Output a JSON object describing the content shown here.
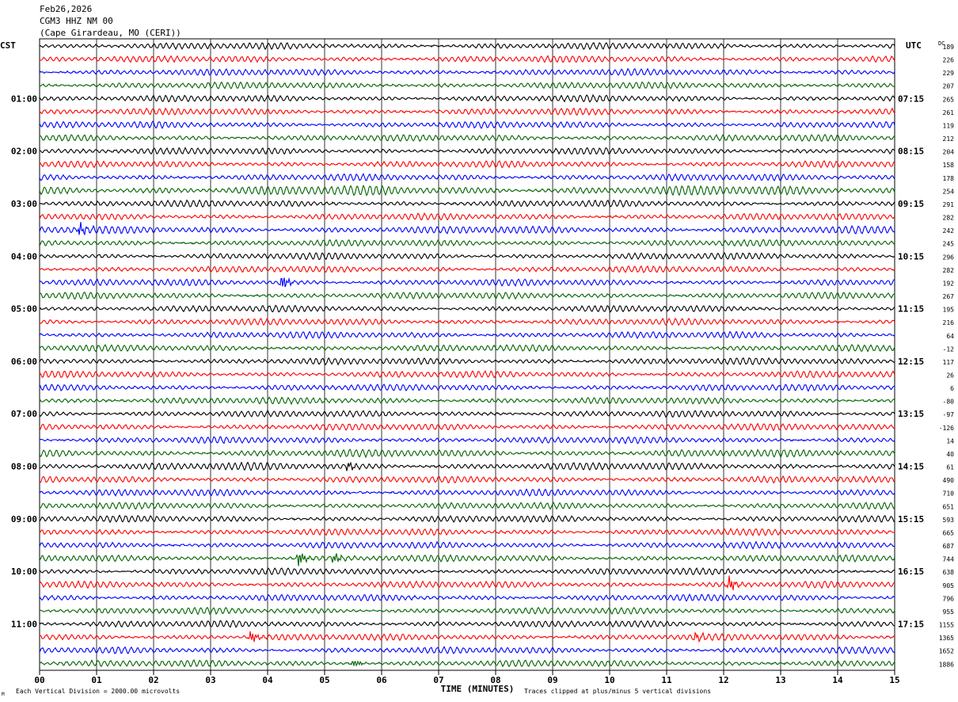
{
  "header": {
    "date": "Feb26,2026",
    "station": "CGM3 HHZ NM 00",
    "location": "(Cape Girardeau, MO (CERI))"
  },
  "labels": {
    "left_tz": "CST",
    "right_tz": "UTC",
    "dc": "DC",
    "xlabel": "TIME (MINUTES)",
    "footer_left": "Each Vertical Division = 2000.00 microvolts",
    "footer_right": "Traces clipped at plus/minus 5 vertical divisions",
    "footer_mark": "M"
  },
  "colors": {
    "cycle": [
      "#000000",
      "#ff0000",
      "#0000ff",
      "#006400"
    ],
    "grid": "#000000"
  },
  "chart_data": {
    "type": "line",
    "description_units": "helicorder: 48 traces, 15 minutes each",
    "x_ticks": [
      "00",
      "01",
      "02",
      "03",
      "04",
      "05",
      "06",
      "07",
      "08",
      "09",
      "10",
      "11",
      "12",
      "13",
      "14",
      "15"
    ],
    "xlim": [
      0,
      15
    ],
    "left_hours": [
      "01:00",
      "02:00",
      "03:00",
      "04:00",
      "05:00",
      "06:00",
      "07:00",
      "08:00",
      "09:00",
      "10:00",
      "11:00"
    ],
    "right_hours": [
      "07:15",
      "08:15",
      "09:15",
      "10:15",
      "11:15",
      "12:15",
      "13:15",
      "14:15",
      "15:15",
      "16:15",
      "17:15"
    ],
    "dc_offsets": [
      "189",
      "226",
      "229",
      "207",
      "265",
      "261",
      "119",
      "212",
      "204",
      "158",
      "178",
      "254",
      "291",
      "282",
      "242",
      "245",
      "296",
      "282",
      "192",
      "267",
      "195",
      "216",
      "64",
      "-12",
      "117",
      "26",
      "6",
      "-80",
      "-97",
      "-126",
      "14",
      "40",
      "61",
      "490",
      "710",
      "651",
      "593",
      "665",
      "687",
      "744",
      "638",
      "905",
      "796",
      "955",
      "1155",
      "1365",
      "1652",
      "1886"
    ],
    "amplitudes": [
      3,
      3,
      3,
      3,
      3,
      3,
      3,
      3,
      3,
      3,
      3,
      4.5,
      3,
      3,
      3.5,
      3,
      3,
      3,
      3,
      3,
      3,
      3,
      3,
      3,
      3,
      3,
      3,
      3,
      3,
      3,
      3,
      3.5,
      3.5,
      3,
      3,
      3,
      3,
      3,
      3,
      3,
      3,
      3,
      3,
      3,
      3,
      3,
      3,
      3
    ],
    "events": [
      {
        "trace": 14,
        "minute": 0.7,
        "amp": 8
      },
      {
        "trace": 18,
        "minute": 4.25,
        "amp": 10
      },
      {
        "trace": 32,
        "minute": 5.4,
        "amp": 6
      },
      {
        "trace": 39,
        "minute": 4.55,
        "amp": 10
      },
      {
        "trace": 39,
        "minute": 5.15,
        "amp": 7
      },
      {
        "trace": 41,
        "minute": 12.1,
        "amp": 9
      },
      {
        "trace": 45,
        "minute": 3.7,
        "amp": 8
      },
      {
        "trace": 45,
        "minute": 11.5,
        "amp": 5
      },
      {
        "trace": 47,
        "minute": 5.5,
        "amp": 5
      }
    ]
  }
}
